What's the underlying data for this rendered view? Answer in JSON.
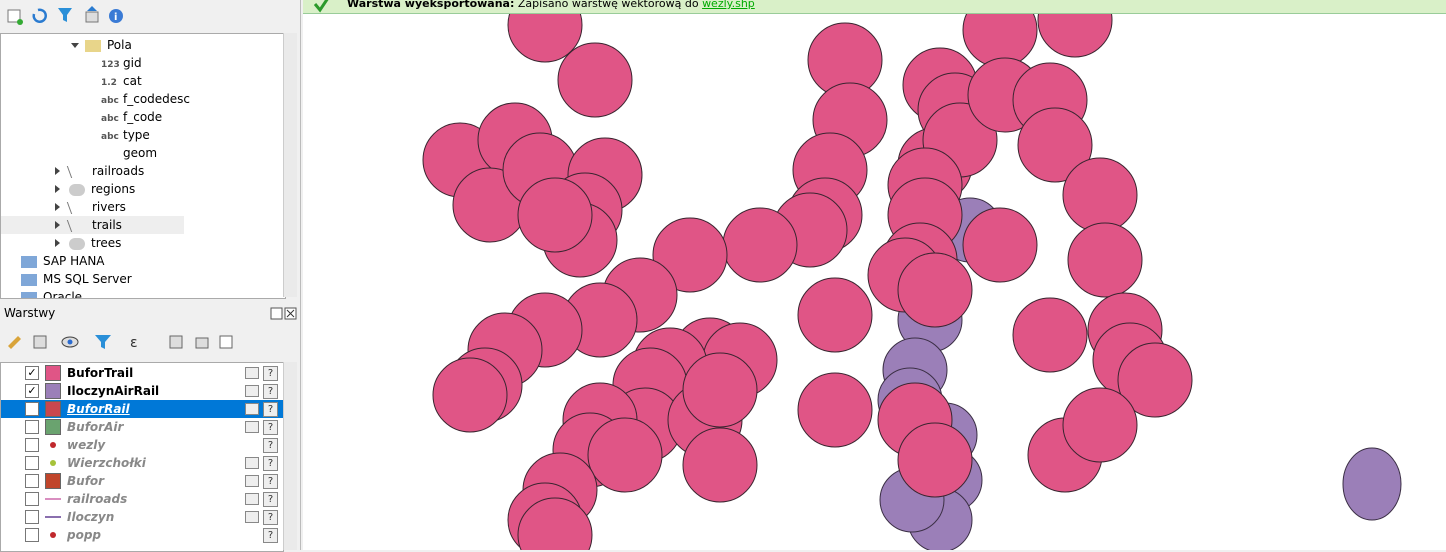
{
  "message": {
    "title": "Warstwa wyeksportowana:",
    "text": "Zapisano warstwę wektorową do",
    "link": "wezly.shp"
  },
  "browser": {
    "items": [
      {
        "label": "Pola",
        "level": 1,
        "icon": "table"
      },
      {
        "label": "gid",
        "level": 2,
        "type": "123"
      },
      {
        "label": "cat",
        "level": 2,
        "type": "1.2"
      },
      {
        "label": "f_codedesc",
        "level": 2,
        "type": "abc"
      },
      {
        "label": "f_code",
        "level": 2,
        "type": "abc"
      },
      {
        "label": "type",
        "level": 2,
        "type": "abc"
      },
      {
        "label": "geom",
        "level": 2,
        "icon": "geom"
      },
      {
        "label": "railroads",
        "level": 0,
        "icon": "line"
      },
      {
        "label": "regions",
        "level": 0,
        "icon": "poly"
      },
      {
        "label": "rivers",
        "level": 0,
        "icon": "line"
      },
      {
        "label": "trails",
        "level": 0,
        "icon": "line",
        "selected": true
      },
      {
        "label": "trees",
        "level": 0,
        "icon": "poly"
      },
      {
        "label": "SAP HANA",
        "level": -1,
        "icon": "db"
      },
      {
        "label": "MS SQL Server",
        "level": -1,
        "icon": "db"
      },
      {
        "label": "Oracle",
        "level": -1,
        "icon": "db"
      }
    ]
  },
  "layers": {
    "title": "Warstwy",
    "items": [
      {
        "name": "BuforTrail",
        "checked": true,
        "symbol": "#e05586",
        "kind": "poly"
      },
      {
        "name": "IloczynAirRail",
        "checked": true,
        "symbol": "#9b7fb8",
        "kind": "poly"
      },
      {
        "name": "BuforRail",
        "checked": false,
        "symbol": "#c9474e",
        "kind": "poly",
        "selected": true
      },
      {
        "name": "BuforAir",
        "checked": false,
        "symbol": "#6aa36f",
        "kind": "poly"
      },
      {
        "name": "wezly",
        "checked": false,
        "symbol": "#c0282d",
        "kind": "point"
      },
      {
        "name": "Wierzchołki",
        "checked": false,
        "symbol": "#a6c23a",
        "kind": "point"
      },
      {
        "name": "Bufor",
        "checked": false,
        "symbol": "#c0452b",
        "kind": "poly"
      },
      {
        "name": "railroads",
        "checked": false,
        "symbol": "#d98ec0",
        "kind": "line"
      },
      {
        "name": "Iloczyn",
        "checked": false,
        "symbol": "#8a6fae",
        "kind": "line"
      },
      {
        "name": "popp",
        "checked": false,
        "symbol": "#c0282d",
        "kind": "point"
      }
    ]
  }
}
